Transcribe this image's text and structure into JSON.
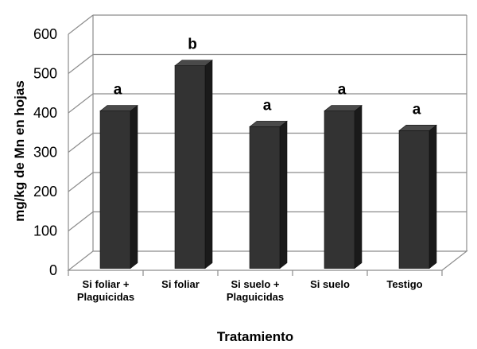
{
  "chart_data": {
    "type": "bar",
    "style": "3d-column",
    "categories": [
      [
        "Si foliar +",
        "Plaguicidas"
      ],
      [
        "Si foliar"
      ],
      [
        "Si suelo +",
        "Plaguicidas"
      ],
      [
        "Si suelo"
      ],
      [
        "Testigo"
      ]
    ],
    "values": [
      400,
      515,
      360,
      400,
      350
    ],
    "annotations": [
      "a",
      "b",
      "a",
      "a",
      "a"
    ],
    "xlabel": "Tratamiento",
    "ylabel": "mg/kg de Mn en hojas",
    "ylim": [
      0,
      600
    ],
    "yticks": [
      0,
      100,
      200,
      300,
      400,
      500,
      600
    ],
    "grid": true,
    "colors": {
      "bar_front": "#333333",
      "bar_side": "#1a1a1a",
      "bar_top": "#4a4a4a",
      "grid": "#8c8c8c"
    }
  }
}
